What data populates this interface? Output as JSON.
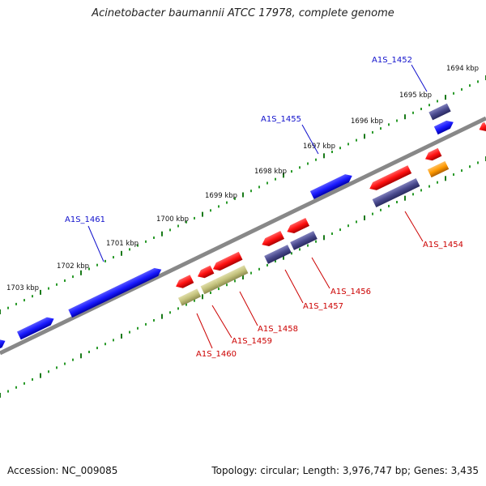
{
  "title": "Acinetobacter baumannii ATCC 17978, complete genome",
  "footer": {
    "accession": "Accession: NC_009085",
    "stats": "Topology: circular; Length: 3,976,747 bp; Genes: 3,435"
  },
  "ticks": [
    "1694 kbp",
    "1695 kbp",
    "1696 kbp",
    "1697 kbp",
    "1698 kbp",
    "1699 kbp",
    "1700 kbp",
    "1701 kbp",
    "1702 kbp",
    "1703 kbp"
  ],
  "gene_labels": {
    "forward": [
      "A1S_1452",
      "A1S_1455",
      "A1S_1461"
    ],
    "reverse": [
      "A1S_1454",
      "A1S_1456",
      "A1S_1457",
      "A1S_1458",
      "A1S_1459",
      "A1S_1460"
    ]
  },
  "colors": {
    "forward_label": "#1010cc",
    "reverse_label": "#cc0000",
    "cds_blue": "#1a1aff",
    "cds_red": "#ff1111",
    "cds_navy": "#4a4a8e",
    "cds_olive": "#c2c07a",
    "cds_orange": "#ff9900",
    "backbone": "#888888",
    "tick": "#1a8a1a"
  }
}
